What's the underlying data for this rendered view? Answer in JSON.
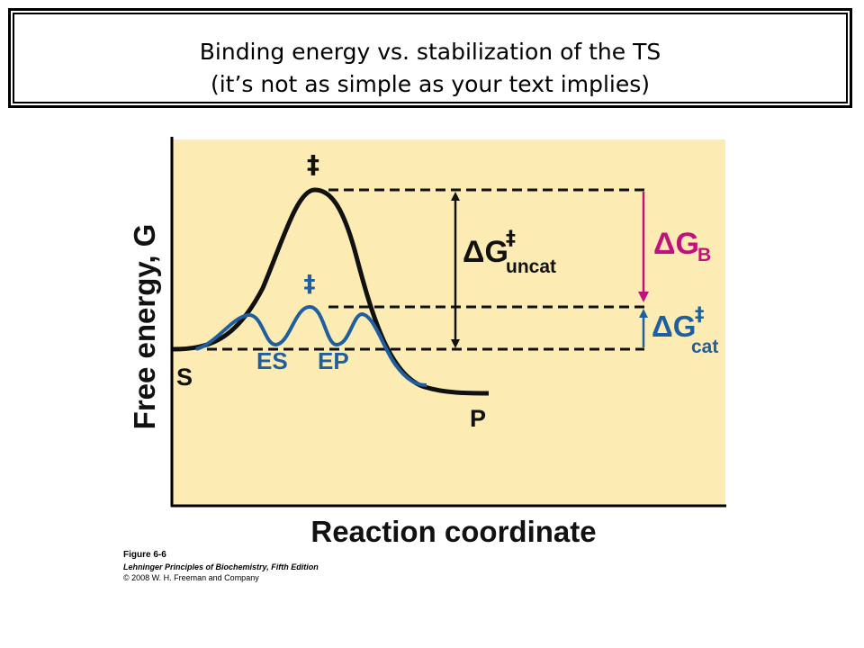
{
  "title": {
    "line1": "Binding energy vs. stabilization of the TS",
    "line2": "(it’s not as simple as your text implies)"
  },
  "diagram": {
    "y_axis_label": "Free energy, G",
    "x_axis_label": "Reaction coordinate",
    "dagger_uncat": "‡",
    "dagger_cat": "‡",
    "label_S": "S",
    "label_P": "P",
    "label_ES": "ES",
    "label_EP": "EP",
    "dg_uncat_main": "ΔG",
    "dg_uncat_sup": "‡",
    "dg_uncat_sub": "uncat",
    "dg_b_main": "ΔG",
    "dg_b_sub": "B",
    "dg_cat_main": "ΔG",
    "dg_cat_sup": "‡",
    "dg_cat_sub": "cat",
    "colors": {
      "background": "#fcecb4",
      "uncatalyzed_curve": "#111111",
      "catalyzed_curve": "#1f5fa0",
      "binding_energy_arrow": "#c0127a"
    }
  },
  "caption": {
    "figure": "Figure 6-6",
    "book": "Lehninger Principles of Biochemistry, Fifth Edition",
    "copyright": "© 2008 W. H. Freeman and Company"
  }
}
